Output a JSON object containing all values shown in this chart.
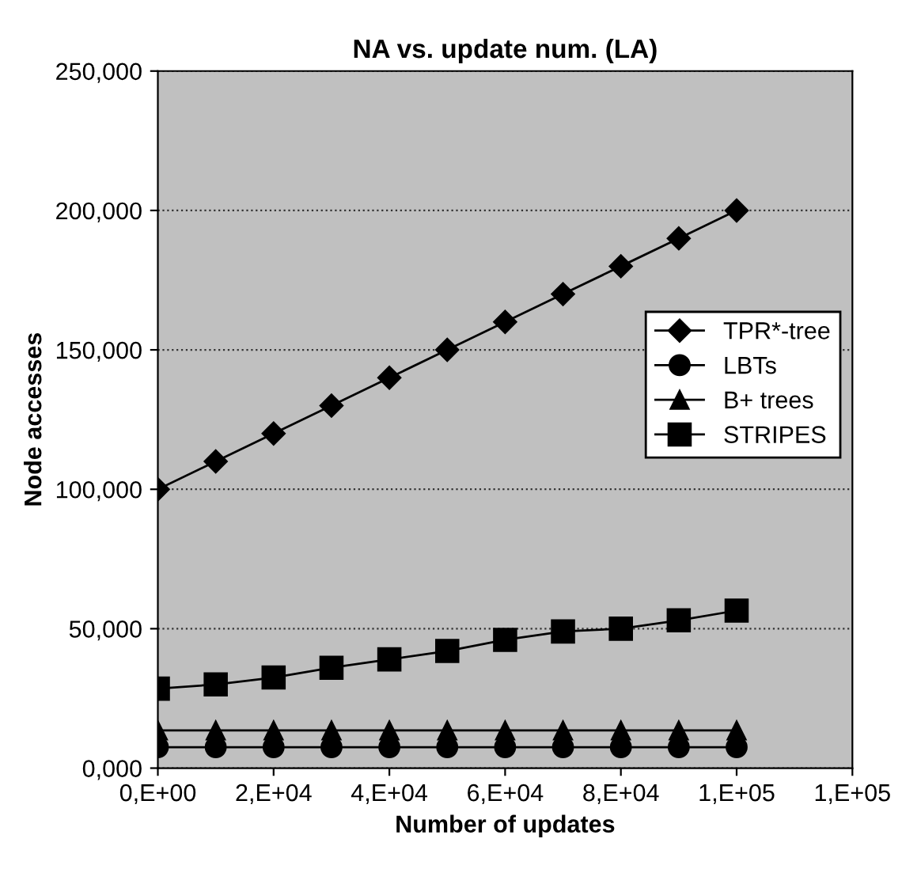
{
  "chart_data": {
    "type": "line",
    "title": "NA vs. update num. (LA)",
    "xlabel": "Number of updates",
    "ylabel": "Node accesses",
    "categories": [
      "0,E+00",
      null,
      "2,E+04",
      null,
      "4,E+04",
      null,
      "6,E+04",
      null,
      "8,E+04",
      null,
      "1,E+05",
      null,
      "1,E+05"
    ],
    "series": [
      {
        "name": "TPR*-tree",
        "color": "#000000",
        "marker": "diamond",
        "values": [
          100000,
          110000,
          120000,
          130000,
          140000,
          150000,
          160000,
          170000,
          180000,
          190000,
          200000,
          null,
          null
        ]
      },
      {
        "name": "LBTs",
        "color": "#000000",
        "marker": "circle",
        "values": [
          7500,
          7500,
          7500,
          7500,
          7500,
          7500,
          7500,
          7500,
          7500,
          7500,
          7500,
          null,
          null
        ]
      },
      {
        "name": "B+ trees",
        "color": "#000000",
        "marker": "triangle",
        "values": [
          13500,
          13500,
          13500,
          13500,
          13500,
          13500,
          13500,
          13500,
          13500,
          13500,
          13500,
          null,
          null
        ]
      },
      {
        "name": "STRIPES",
        "color": "#000000",
        "marker": "square",
        "values": [
          28500,
          30000,
          32500,
          36000,
          39000,
          42000,
          46000,
          49000,
          50000,
          53000,
          56500,
          null,
          null
        ]
      }
    ],
    "ylim": [
      0,
      250000
    ],
    "yticks": [
      {
        "value": 0,
        "label": "0,000"
      },
      {
        "value": 50000,
        "label": "50,000"
      },
      {
        "value": 100000,
        "label": "100,000"
      },
      {
        "value": 150000,
        "label": "150,000"
      },
      {
        "value": 200000,
        "label": "200,000"
      },
      {
        "value": 250000,
        "label": "250,000"
      }
    ],
    "grid": "y",
    "legend": "right",
    "line_style": "solid"
  }
}
